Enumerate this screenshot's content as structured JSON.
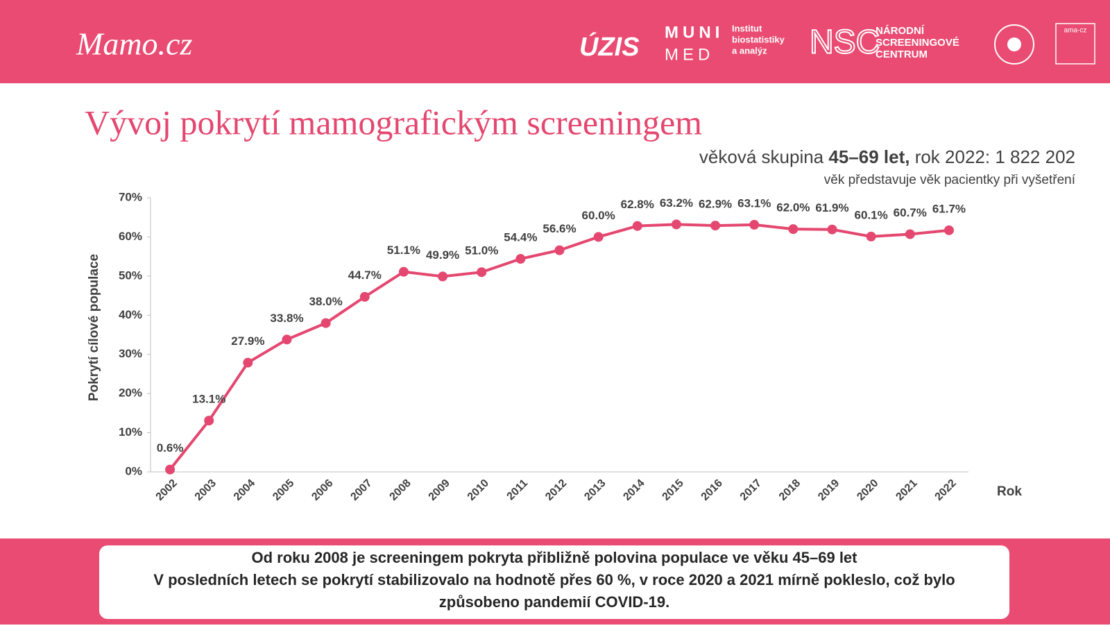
{
  "header": {
    "brand": "Mamo.cz",
    "logos": [
      "ÚZIS",
      "MUNI",
      "MED",
      "Institut",
      "biostatistiky",
      "a analýz",
      "NSC",
      "NÁRODNÍ",
      "SCREENINGOVÉ",
      "CENTRUM",
      "ama-cz"
    ]
  },
  "chart_data": {
    "type": "line",
    "title": "Vývoj pokrytí mamografickým screeningem",
    "subtitle_parts": [
      "věková skupina ",
      "45–69 let,",
      " rok 2022: 1 822 202"
    ],
    "note": "věk představuje věk pacientky při vyšetření",
    "y_label": "Pokrytí cílové populace",
    "x_label": "Rok",
    "categories": [
      "2002",
      "2003",
      "2004",
      "2005",
      "2006",
      "2007",
      "2008",
      "2009",
      "2010",
      "2011",
      "2012",
      "2013",
      "2014",
      "2015",
      "2016",
      "2017",
      "2018",
      "2019",
      "2020",
      "2021",
      "2022"
    ],
    "series": [
      {
        "name": "Pokrytí",
        "color": "#e4476f",
        "values": [
          0.6,
          13.1,
          27.9,
          33.8,
          38.0,
          44.7,
          51.1,
          49.9,
          51.0,
          54.4,
          56.6,
          60.0,
          62.8,
          63.2,
          62.9,
          63.1,
          62.0,
          61.9,
          60.1,
          60.7,
          61.7
        ],
        "value_labels": [
          "0.6%",
          "13.1%",
          "27.9%",
          "33.8%",
          "38.0%",
          "44.7%",
          "51.1%",
          "49.9%",
          "51.0%",
          "54.4%",
          "56.6%",
          "60.0%",
          "62.8%",
          "63.2%",
          "62.9%",
          "63.1%",
          "62.0%",
          "61.9%",
          "60.1%",
          "60.7%",
          "61.7%"
        ]
      }
    ],
    "ylim": [
      0,
      70
    ],
    "yticks": [
      {
        "value": 0,
        "label": "0%"
      },
      {
        "value": 10,
        "label": "10%"
      },
      {
        "value": 20,
        "label": "20%"
      },
      {
        "value": 30,
        "label": "30%"
      },
      {
        "value": 40,
        "label": "40%"
      },
      {
        "value": 50,
        "label": "50%"
      },
      {
        "value": 60,
        "label": "60%"
      },
      {
        "value": 70,
        "label": "70%"
      }
    ],
    "grid": false
  },
  "footer": {
    "lines": [
      "Od roku 2008 je screeningem pokryta přibližně polovina populace ve věku 45–69 let",
      "V posledních letech se pokrytí stabilizovalo na hodnotě přes 60 %, v roce 2020 a 2021 mírně pokleslo, což bylo",
      "způsobeno pandemií COVID-19."
    ]
  }
}
